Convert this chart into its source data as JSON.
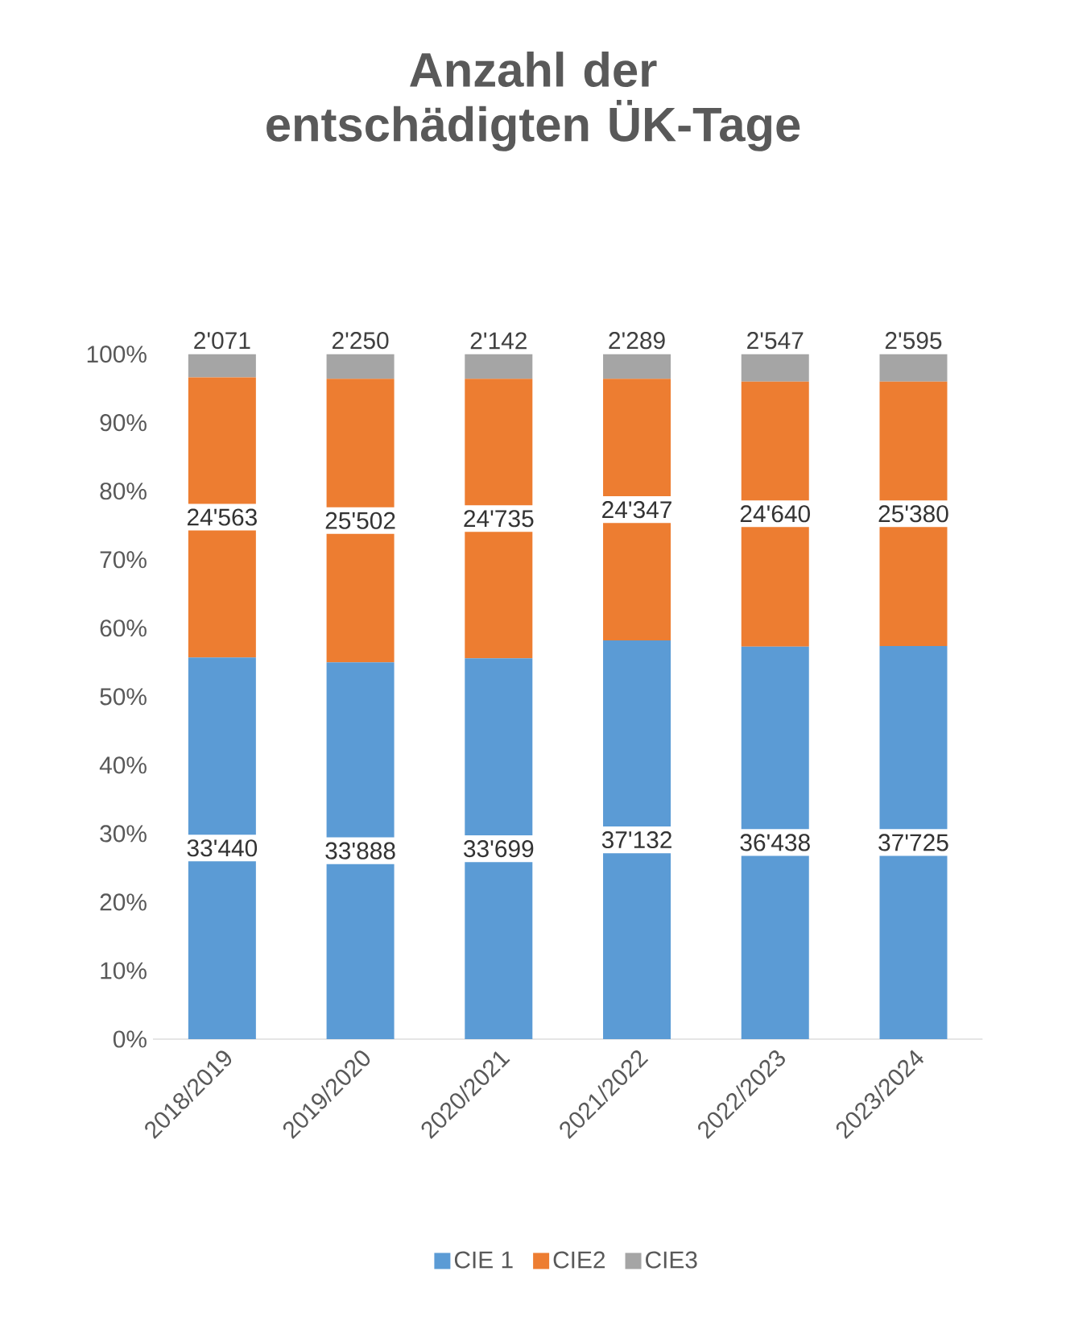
{
  "chart_data": {
    "type": "bar",
    "stacked": true,
    "title": "Anzahl der entschädigten ÜK-Tage",
    "categories": [
      "2018/2019",
      "2019/2020",
      "2020/2021",
      "2021/2022",
      "2022/2023",
      "2023/2024"
    ],
    "series": [
      {
        "name": "CIE 1",
        "color": "#5b9bd5",
        "values": [
          55.7,
          55.0,
          55.6,
          58.2,
          57.3,
          57.4
        ]
      },
      {
        "name": "CIE2",
        "color": "#ed7d31",
        "values": [
          40.9,
          41.4,
          40.8,
          38.2,
          38.7,
          38.6
        ]
      },
      {
        "name": "CIE3",
        "color": "#a5a5a5",
        "values": [
          3.4,
          3.6,
          3.6,
          3.6,
          4.0,
          4.0
        ]
      }
    ],
    "annotations": [
      {
        "text": "33'440",
        "x": "2018/2019",
        "y": 27.9
      },
      {
        "text": "33'888",
        "x": "2019/2020",
        "y": 27.5
      },
      {
        "text": "33'699",
        "x": "2020/2021",
        "y": 27.8
      },
      {
        "text": "37'132",
        "x": "2021/2022",
        "y": 29.1
      },
      {
        "text": "36'438",
        "x": "2022/2023",
        "y": 28.7
      },
      {
        "text": "37'725",
        "x": "2023/2024",
        "y": 28.7
      },
      {
        "text": "24'563",
        "x": "2018/2019",
        "y": 76.2
      },
      {
        "text": "25'502",
        "x": "2019/2020",
        "y": 75.7
      },
      {
        "text": "24'735",
        "x": "2020/2021",
        "y": 76.0
      },
      {
        "text": "24'347",
        "x": "2021/2022",
        "y": 77.3
      },
      {
        "text": "24'640",
        "x": "2022/2023",
        "y": 76.7
      },
      {
        "text": "25'380",
        "x": "2023/2024",
        "y": 76.7
      },
      {
        "text": "2'071",
        "x": "2018/2019",
        "y": 100
      },
      {
        "text": "2'250",
        "x": "2019/2020",
        "y": 100
      },
      {
        "text": "2'142",
        "x": "2020/2021",
        "y": 100
      },
      {
        "text": "2'289",
        "x": "2021/2022",
        "y": 100
      },
      {
        "text": "2'547",
        "x": "2022/2023",
        "y": 100
      },
      {
        "text": "2'595",
        "x": "2023/2024",
        "y": 100
      }
    ],
    "ylim": [
      0,
      100
    ],
    "yticks": [
      {
        "value": 0,
        "label": "0%"
      },
      {
        "value": 10,
        "label": "10%"
      },
      {
        "value": 20,
        "label": "20%"
      },
      {
        "value": 30,
        "label": "30%"
      },
      {
        "value": 40,
        "label": "40%"
      },
      {
        "value": 50,
        "label": "50%"
      },
      {
        "value": 60,
        "label": "60%"
      },
      {
        "value": 70,
        "label": "70%"
      },
      {
        "value": 80,
        "label": "80%"
      },
      {
        "value": 90,
        "label": "90%"
      },
      {
        "value": 100,
        "label": "100%"
      }
    ],
    "grid": false,
    "legend": "bottom"
  }
}
